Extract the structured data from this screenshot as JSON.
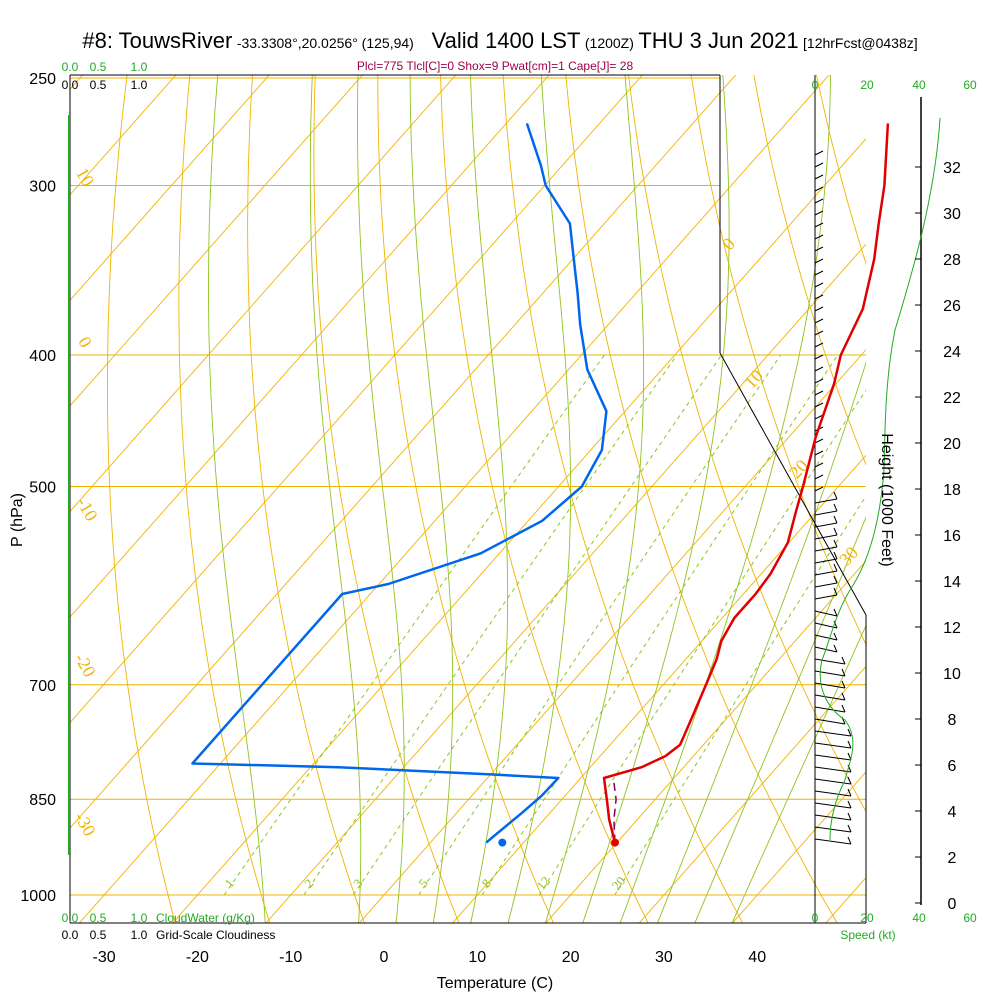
{
  "header": {
    "station": "#8: TouwsRiver",
    "coords": "-33.3308°,20.0256° (125,94)",
    "valid": "Valid 1400 LST",
    "zulu": "(1200Z)",
    "date": "THU 3 Jun 2021",
    "fcst": "[12hrFcst@0438z]"
  },
  "indices": "Plcl=775 Tlcl[C]=0 Shox=9 Pwat[cm]=1 Cape[J]= 28",
  "colors": {
    "temp": "#e00000",
    "dewpoint": "#0066ee",
    "isotherm": "#f0b400",
    "dry_adiabat": "#f0b400",
    "moist_adiabat": "#8fc31f",
    "mixing_ratio": "#8fc31f",
    "cloud": "#22aa22",
    "parcel": "#800060",
    "indices_text": "#a0004a"
  },
  "chart_data": {
    "type": "skew-t",
    "xlabel": "Temperature (C)",
    "ylabel": "P (hPa)",
    "right_label": "Height (1000 Feet)",
    "x_ticks": [
      "-30",
      "-20",
      "-10",
      "0",
      "10",
      "20",
      "30",
      "40"
    ],
    "p_ticks": [
      "250",
      "300",
      "400",
      "500",
      "700",
      "850",
      "1000"
    ],
    "height_ticks": [
      "0",
      "2",
      "4",
      "6",
      "8",
      "10",
      "12",
      "14",
      "16",
      "18",
      "20",
      "22",
      "24",
      "26",
      "28",
      "30",
      "32"
    ],
    "isotherm_labels": [
      "0",
      "10",
      "20",
      "30"
    ],
    "left_temp_labels": [
      "10",
      "0",
      "-10",
      "-20",
      "-30"
    ],
    "mixing_ratio_labels": [
      "1",
      "2",
      "3",
      "5",
      "8",
      "12",
      "20"
    ],
    "cloud_scale": {
      "top_green": [
        "0.0",
        "0.5",
        "1.0"
      ],
      "top_black": [
        "0.0",
        "0.5",
        "1.0"
      ],
      "bottom_green": [
        "0.0",
        "0.5",
        "1.0"
      ],
      "cloudwater_label": "CloudWater (g/Kg)",
      "bottom_black": [
        "0.0",
        "0.5",
        "1.0"
      ],
      "cloudiness_label": "Grid-Scale Cloudiness"
    },
    "speed_scale": {
      "top": [
        "0",
        "20",
        "40",
        "60"
      ],
      "bottom": [
        "0",
        "20",
        "40",
        "60"
      ],
      "label": "Speed (kt)"
    },
    "temperature": [
      {
        "p": 915,
        "t": 19.8
      },
      {
        "p": 880,
        "t": 17.0
      },
      {
        "p": 850,
        "t": 14.8
      },
      {
        "p": 820,
        "t": 12.5
      },
      {
        "p": 805,
        "t": 15.5
      },
      {
        "p": 790,
        "t": 17.0
      },
      {
        "p": 775,
        "t": 17.5
      },
      {
        "p": 740,
        "t": 16.2
      },
      {
        "p": 700,
        "t": 14.6
      },
      {
        "p": 670,
        "t": 13.3
      },
      {
        "p": 650,
        "t": 12.1
      },
      {
        "p": 625,
        "t": 11.3
      },
      {
        "p": 600,
        "t": 11.3
      },
      {
        "p": 580,
        "t": 11.0
      },
      {
        "p": 550,
        "t": 9.9
      },
      {
        "p": 520,
        "t": 7.7
      },
      {
        "p": 500,
        "t": 6.2
      },
      {
        "p": 460,
        "t": 2.9
      },
      {
        "p": 420,
        "t": -0.2
      },
      {
        "p": 400,
        "t": -2.2
      },
      {
        "p": 370,
        "t": -4.2
      },
      {
        "p": 340,
        "t": -7.7
      },
      {
        "p": 320,
        "t": -10.6
      },
      {
        "p": 300,
        "t": -13.6
      },
      {
        "p": 270,
        "t": -19.1
      }
    ],
    "dewpoint": [
      {
        "p": 915,
        "t": 6.0
      },
      {
        "p": 905,
        "t": 6.2
      },
      {
        "p": 870,
        "t": 7.0
      },
      {
        "p": 845,
        "t": 7.5
      },
      {
        "p": 820,
        "t": 7.6
      },
      {
        "p": 815,
        "t": 0.0
      },
      {
        "p": 805,
        "t": -17.0
      },
      {
        "p": 800,
        "t": -33.0
      },
      {
        "p": 600,
        "t": -33.0
      },
      {
        "p": 590,
        "t": -29.0
      },
      {
        "p": 560,
        "t": -22.0
      },
      {
        "p": 530,
        "t": -18.5
      },
      {
        "p": 500,
        "t": -17.5
      },
      {
        "p": 470,
        "t": -18.8
      },
      {
        "p": 440,
        "t": -22.0
      },
      {
        "p": 410,
        "t": -28.0
      },
      {
        "p": 380,
        "t": -33.0
      },
      {
        "p": 360,
        "t": -36.3
      },
      {
        "p": 340,
        "t": -39.9
      },
      {
        "p": 320,
        "t": -43.7
      },
      {
        "p": 300,
        "t": -49.9
      },
      {
        "p": 290,
        "t": -52.3
      },
      {
        "p": 270,
        "t": -57.8
      }
    ],
    "parcel": [
      {
        "p": 915,
        "t": 19.8
      },
      {
        "p": 880,
        "t": 17.5
      },
      {
        "p": 850,
        "t": 15.8
      },
      {
        "p": 820,
        "t": 13.5
      }
    ]
  }
}
